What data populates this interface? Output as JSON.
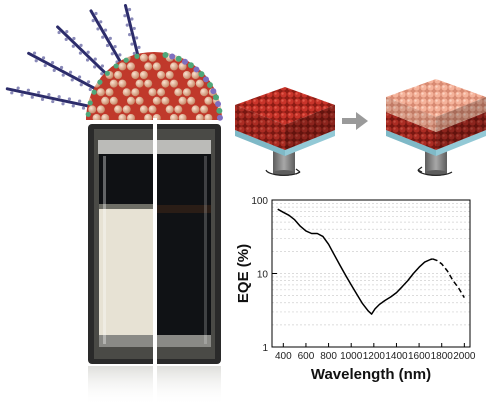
{
  "colors": {
    "film_red": "#b2261c",
    "film_pink": "#f2a68c",
    "substrate": "#a9dbe6",
    "chuck": "#7b7b7b",
    "arrow": "#9a9a9a",
    "vial_frame": "#2a2a2a",
    "vial_bg": "#3c3c38",
    "nanocrystal_core": "#ecc0a0",
    "ligand_chain": "#2c2c6a",
    "curve": "#000000"
  },
  "icons": {
    "nanocrystal": "quantum-dot-with-ligands-icon",
    "vial": "colloid-vial-phase-transfer-icon",
    "film_before": "nanocrystal-film-on-spinner-icon",
    "process_arrow": "right-arrow-icon",
    "film_after": "treated-nanocrystal-film-on-spinner-icon"
  },
  "chart_data": {
    "type": "line",
    "xlabel": "Wavelength (nm)",
    "ylabel": "EQE (%)",
    "xlim": [
      300,
      2050
    ],
    "ylim": [
      1,
      100
    ],
    "yscale": "log",
    "x_ticks": [
      400,
      600,
      800,
      1000,
      1200,
      1400,
      1600,
      1800,
      2000
    ],
    "y_ticks": [
      {
        "value": 1,
        "label": "1"
      },
      {
        "value": 10,
        "label": "10"
      },
      {
        "value": 100,
        "label": "100"
      }
    ],
    "grid": true,
    "series": [
      {
        "style": "solid",
        "x": [
          350,
          400,
          450,
          500,
          550,
          600,
          650,
          700,
          750,
          800,
          850,
          900,
          950,
          1000,
          1050,
          1100,
          1150,
          1180,
          1210,
          1250,
          1300,
          1350,
          1400,
          1450,
          1500,
          1550,
          1600,
          1650,
          1700,
          1720
        ],
        "y": [
          75,
          68,
          62,
          54,
          44,
          38,
          35,
          35,
          32,
          25,
          18,
          13,
          9.5,
          7.0,
          5.2,
          3.9,
          3.1,
          2.8,
          3.3,
          3.8,
          4.3,
          4.8,
          5.5,
          6.6,
          8.0,
          10.0,
          12.2,
          14.3,
          15.5,
          15.8
        ]
      },
      {
        "style": "dashed",
        "x": [
          1720,
          1760,
          1800,
          1850,
          1900,
          1950,
          2000
        ],
        "y": [
          15.8,
          15.0,
          13.5,
          10.8,
          8.0,
          6.3,
          4.7
        ]
      }
    ]
  }
}
